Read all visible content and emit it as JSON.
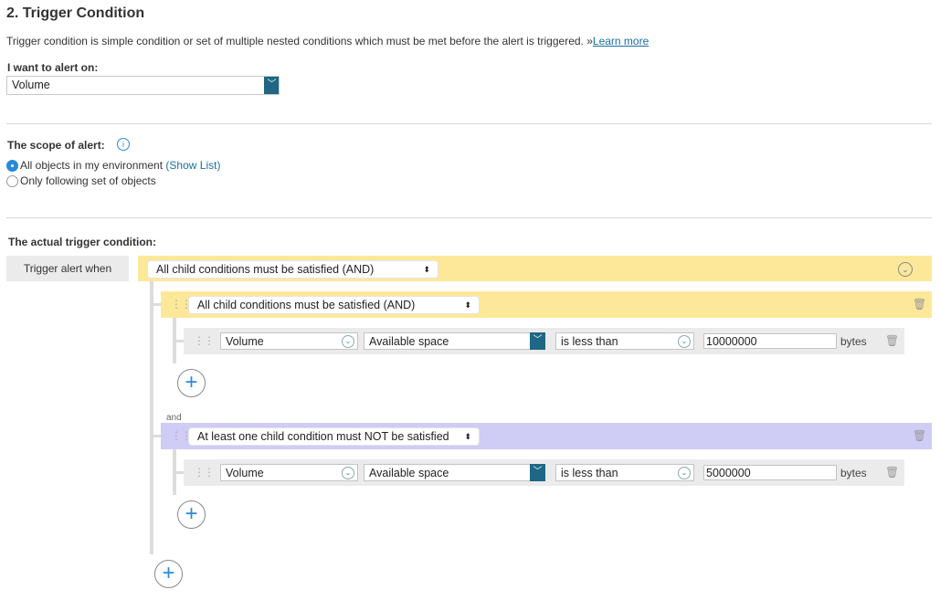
{
  "header": {
    "title": "2. Trigger Condition",
    "description": "Trigger condition is simple condition or set of multiple nested conditions which must be met before the alert is triggered. »",
    "learn_more": "Learn more"
  },
  "alert_on": {
    "label": "I want to alert on:",
    "value": "Volume"
  },
  "scope": {
    "label": "The scope of alert:",
    "options": [
      {
        "label": "All objects in my environment",
        "link": "(Show List)",
        "selected": true
      },
      {
        "label": "Only following set of objects",
        "selected": false
      }
    ]
  },
  "trigger": {
    "label": "The actual trigger condition:",
    "when_label": "Trigger alert when",
    "root_operator": "All child conditions must be satisfied (AND)",
    "groups": [
      {
        "operator": "All child conditions must be satisfied (AND)",
        "color": "#fde89a",
        "condition": {
          "entity": "Volume",
          "metric": "Available space",
          "comparator": "is less than",
          "value": "10000000",
          "unit": "bytes"
        }
      },
      {
        "joiner": "and",
        "operator": "At least one child condition must NOT be satisfied",
        "color": "#cfccf6",
        "condition": {
          "entity": "Volume",
          "metric": "Available space",
          "comparator": "is less than",
          "value": "5000000",
          "unit": "bytes"
        }
      }
    ]
  }
}
